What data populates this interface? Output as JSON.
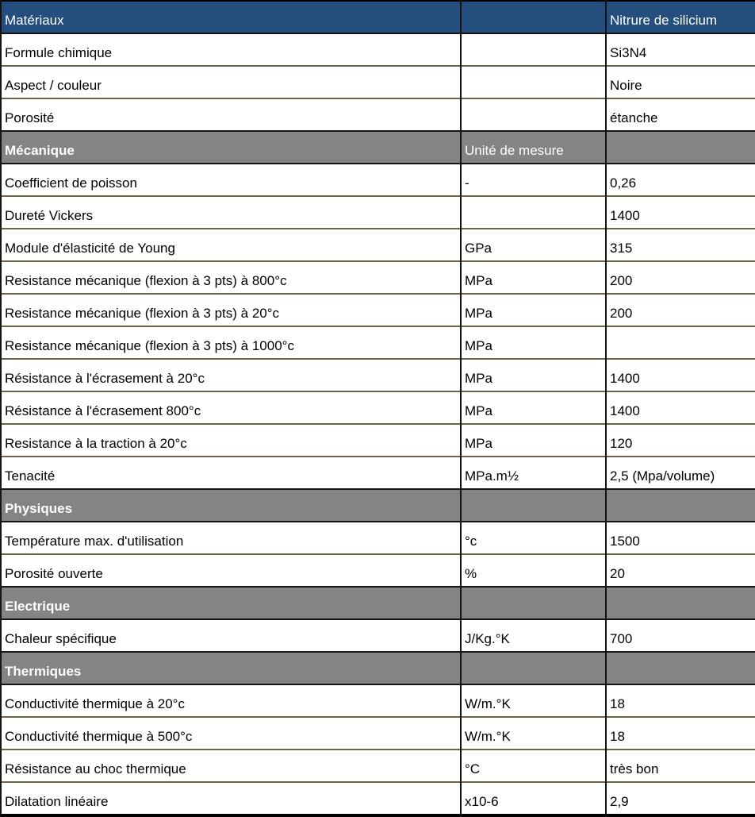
{
  "colors": {
    "header_background": "#234E7D",
    "header_text": "#FFFFFF",
    "section_background": "#848484",
    "section_text": "#FFFFFF",
    "row_background": "#FFFFFF",
    "row_text": "#000000",
    "horizontal_border": "#6B6448",
    "vertical_border": "#141414",
    "outer_border": "#000000"
  },
  "table": {
    "header": {
      "property": "Matériaux",
      "unit": "",
      "value": "Nitrure de silicium"
    },
    "rows": [
      {
        "type": "data",
        "property": "Formule chimique",
        "unit": "",
        "value": "Si3N4"
      },
      {
        "type": "data",
        "property": "Aspect / couleur",
        "unit": "",
        "value": "Noire"
      },
      {
        "type": "data",
        "property": "Porosité",
        "unit": "",
        "value": "étanche"
      },
      {
        "type": "section",
        "property": "Mécanique",
        "unit": "Unité de mesure",
        "value": ""
      },
      {
        "type": "data",
        "property": "Coefficient de poisson",
        "unit": "-",
        "value": "0,26"
      },
      {
        "type": "data",
        "property": "Dureté Vickers",
        "unit": "",
        "value": "1400"
      },
      {
        "type": "data",
        "property": "Module d'élasticité de Young",
        "unit": "GPa",
        "value": "315"
      },
      {
        "type": "data",
        "property": "Resistance mécanique (flexion à 3 pts) à 800°c",
        "unit": "MPa",
        "value": "200"
      },
      {
        "type": "data",
        "property": "Resistance mécanique (flexion à 3 pts) à 20°c",
        "unit": "MPa",
        "value": "200"
      },
      {
        "type": "data",
        "property": "Resistance mécanique (flexion à 3 pts) à 1000°c",
        "unit": "MPa",
        "value": ""
      },
      {
        "type": "data",
        "property": "Résistance à l'écrasement à 20°c",
        "unit": "MPa",
        "value": "1400"
      },
      {
        "type": "data",
        "property": "Résistance à l'écrasement 800°c",
        "unit": "MPa",
        "value": "1400"
      },
      {
        "type": "data",
        "property": "Resistance à la traction à 20°c",
        "unit": "MPa",
        "value": "120"
      },
      {
        "type": "data",
        "property": "Tenacité",
        "unit": "MPa.m½",
        "value": "2,5 (Mpa/volume)"
      },
      {
        "type": "section",
        "property": "Physiques",
        "unit": "",
        "value": ""
      },
      {
        "type": "data",
        "property": "Température max. d'utilisation",
        "unit": "°c",
        "value": "1500"
      },
      {
        "type": "data",
        "property": "Porosité ouverte",
        "unit": "%",
        "value": "20"
      },
      {
        "type": "section",
        "property": "Electrique",
        "unit": "",
        "value": ""
      },
      {
        "type": "data",
        "property": "Chaleur spécifique",
        "unit": "J/Kg.°K",
        "value": "700"
      },
      {
        "type": "section",
        "property": "Thermiques",
        "unit": "",
        "value": ""
      },
      {
        "type": "data",
        "property": "Conductivité thermique à 20°c",
        "unit": "W/m.°K",
        "value": "18"
      },
      {
        "type": "data",
        "property": "Conductivité thermique à 500°c",
        "unit": "W/m.°K",
        "value": "18"
      },
      {
        "type": "data",
        "property": "Résistance au choc thermique",
        "unit": "°C",
        "value": "très bon"
      },
      {
        "type": "data",
        "property": "Dilatation linéaire",
        "unit": "x10-6",
        "value": "2,9"
      }
    ]
  }
}
